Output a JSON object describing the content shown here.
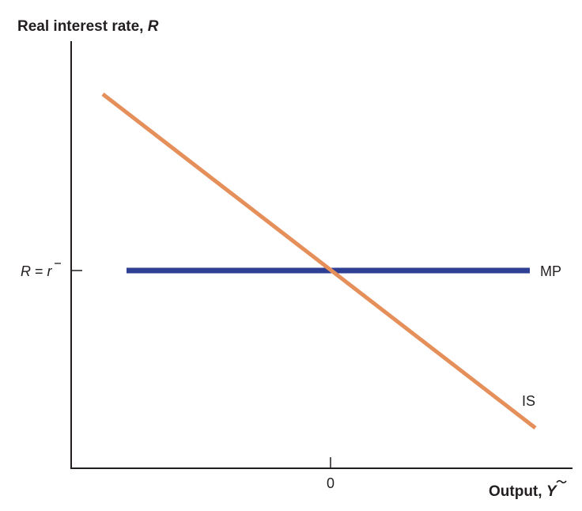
{
  "y_axis": {
    "title_text": "Real interest rate, ",
    "title_var": "R",
    "tick_label_lhs": "R",
    "tick_label_eq": " = ",
    "tick_label_rhs": "r"
  },
  "x_axis": {
    "title_text": "Output, ",
    "title_var": "Y",
    "tick_label": "0"
  },
  "curves": {
    "mp": {
      "label": "MP",
      "color": "#2e3f94"
    },
    "is": {
      "label": "IS",
      "color": "#e58f5a"
    }
  },
  "axis_color": "#231f20"
}
